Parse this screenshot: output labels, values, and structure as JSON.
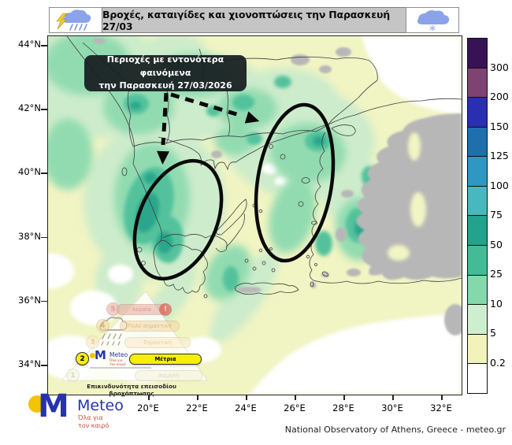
{
  "header": {
    "title": "Βροχές, καταιγίδες και χιονοπτώσεις την Παρασκευή 27/03",
    "left_icon": "storm-rain-cloud",
    "right_icon": "snow-cloud"
  },
  "annotation_box": {
    "line1": "Περιοχές με εντονότερα φαινόμενα",
    "line2": "την Παρασκευή 27/03/2026"
  },
  "map": {
    "y_ticks": [
      "44°N",
      "42°N",
      "40°N",
      "38°N",
      "36°N",
      "34°N"
    ],
    "x_ticks": [
      "20°E",
      "22°E",
      "24°E",
      "26°E",
      "28°E",
      "30°E",
      "32°E"
    ]
  },
  "colorbar": {
    "labels": [
      "300",
      "200",
      "150",
      "125",
      "100",
      "75",
      "50",
      "25",
      "10",
      "5",
      "0.2"
    ],
    "colors_top_to_bottom": [
      "#371254",
      "#7e4273",
      "#2a2eb0",
      "#1e6fab",
      "#2f97c2",
      "#49b7be",
      "#23a28c",
      "#43bb96",
      "#83d8ac",
      "#cdefcf",
      "#f2f3ba",
      "#ffffff"
    ]
  },
  "risk_legend": {
    "title": "Επικινδυνότητα επεισοδίου βροχόπτωσης",
    "badge": "!",
    "levels": [
      {
        "num": "5",
        "label": "Ακραία",
        "pill_color": "#eba9a0",
        "text_color": "#c24a38",
        "active": false
      },
      {
        "num": "4",
        "label": "Πολύ σημαντική",
        "pill_color": "#f6d7a0",
        "text_color": "#c9852f",
        "active": false
      },
      {
        "num": "3",
        "label": "Σημαντική",
        "pill_color": "#fbeac6",
        "text_color": "#d9a95c",
        "active": false
      },
      {
        "num": "2",
        "label": "Μέτρια",
        "pill_color": "#f6f000",
        "text_color": "#000000",
        "active": true
      },
      {
        "num": "1",
        "label": "Χαμηλή",
        "pill_color": "#f4f2d6",
        "text_color": "#b9b99b",
        "active": false
      }
    ]
  },
  "branding": {
    "name": "Meteo",
    "tagline_line1": "Όλα για",
    "tagline_line2": "τον καιρό",
    "brand_blue": "#2733ad",
    "brand_yellow": "#f5c400",
    "tagline_red": "#cc4b38"
  },
  "footer": {
    "credit": "National Observatory of Athens, Greece - meteo.gr"
  }
}
